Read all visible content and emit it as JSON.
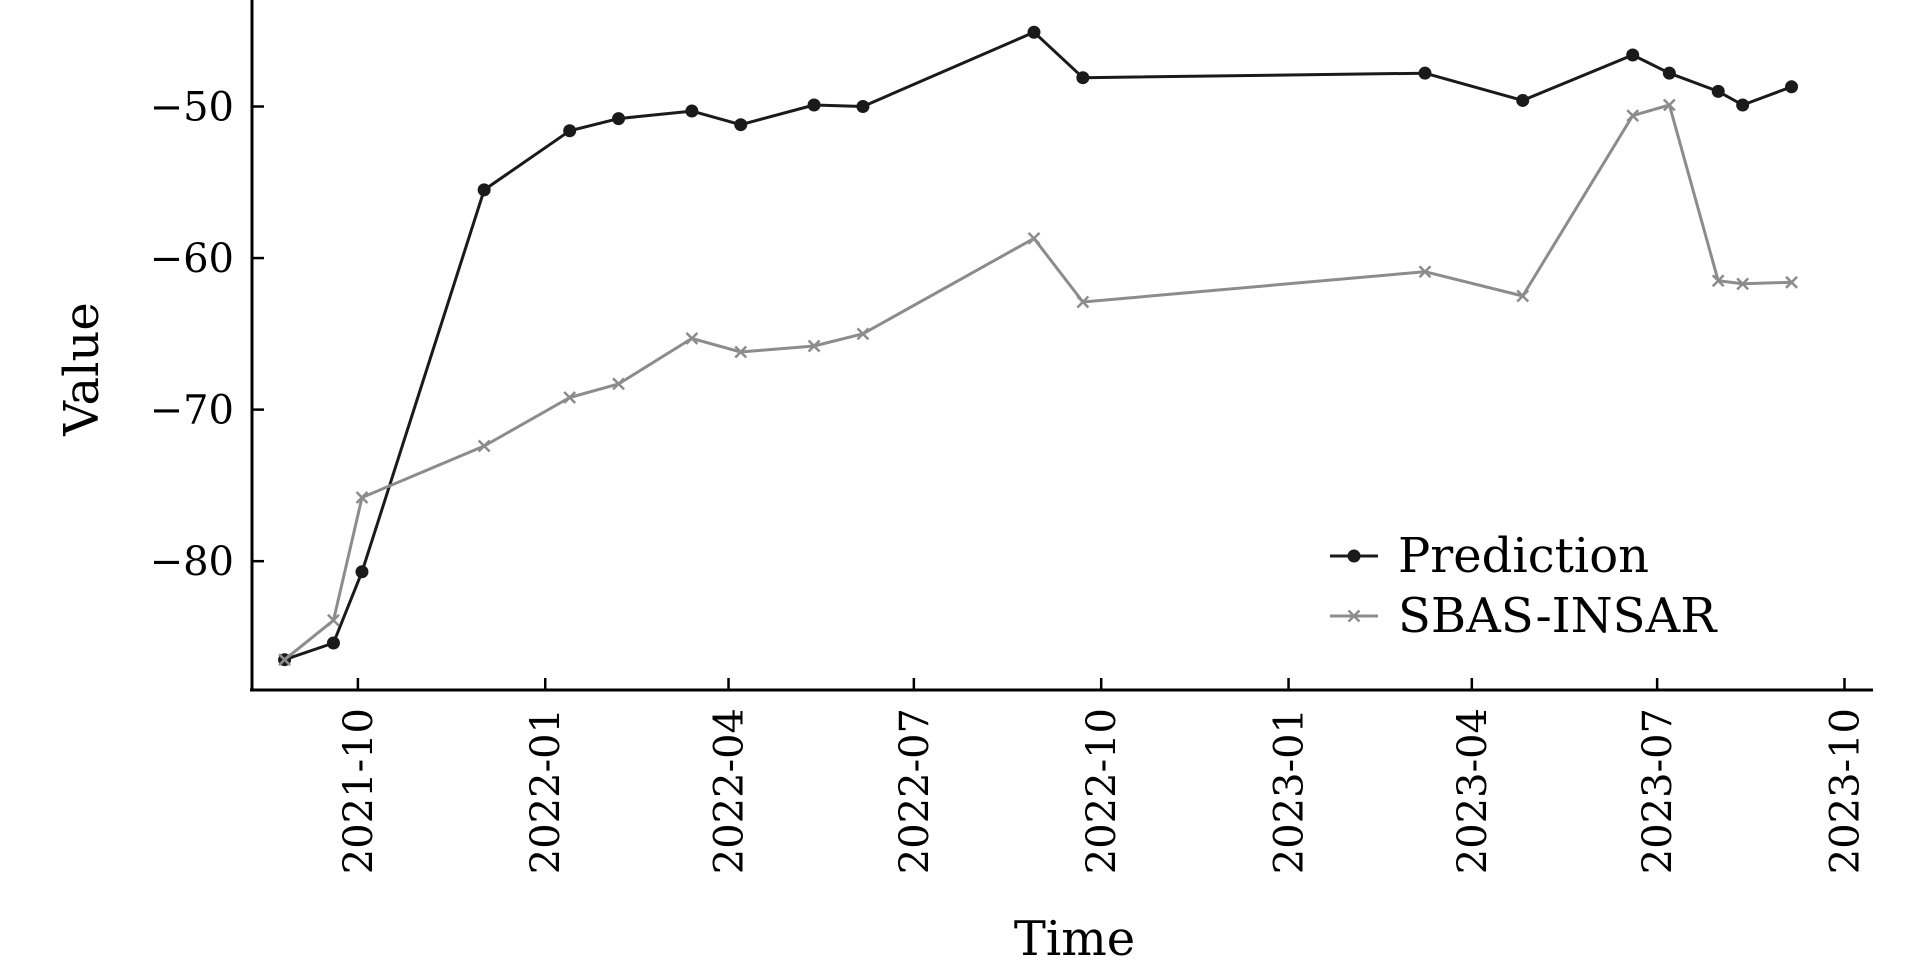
{
  "chart_data": {
    "type": "line",
    "title": "",
    "xlabel": "Time",
    "ylabel": "Value",
    "x_ticks": [
      "2021-10",
      "2022-01",
      "2022-04",
      "2022-07",
      "2022-10",
      "2023-01",
      "2023-04",
      "2023-07",
      "2023-10"
    ],
    "y_ticks": [
      -80,
      -70,
      -60,
      -50
    ],
    "xlim": [
      "2021-08-10",
      "2023-10-15"
    ],
    "ylim": [
      -88.5,
      -43.5
    ],
    "grid": false,
    "legend": "bottom-right",
    "series": [
      {
        "name": "Prediction",
        "color": "#1a1a1a",
        "marker": "dot",
        "points": [
          {
            "x": "2021-08-26",
            "y": -86.5
          },
          {
            "x": "2021-09-19",
            "y": -85.4
          },
          {
            "x": "2021-10-03",
            "y": -80.7
          },
          {
            "x": "2021-12-02",
            "y": -55.5
          },
          {
            "x": "2022-01-13",
            "y": -51.6
          },
          {
            "x": "2022-02-06",
            "y": -50.8
          },
          {
            "x": "2022-03-14",
            "y": -50.3
          },
          {
            "x": "2022-04-07",
            "y": -51.2
          },
          {
            "x": "2022-05-13",
            "y": -49.9
          },
          {
            "x": "2022-06-06",
            "y": -50.0
          },
          {
            "x": "2022-08-29",
            "y": -45.1
          },
          {
            "x": "2022-09-22",
            "y": -48.1
          },
          {
            "x": "2023-03-09",
            "y": -47.8
          },
          {
            "x": "2023-04-26",
            "y": -49.6
          },
          {
            "x": "2023-06-19",
            "y": -46.6
          },
          {
            "x": "2023-07-07",
            "y": -47.8
          },
          {
            "x": "2023-07-31",
            "y": -49.0
          },
          {
            "x": "2023-08-12",
            "y": -49.9
          },
          {
            "x": "2023-09-05",
            "y": -48.7
          }
        ]
      },
      {
        "name": "SBAS-INSAR",
        "color": "#8c8c8c",
        "marker": "x",
        "points": [
          {
            "x": "2021-08-26",
            "y": -86.5
          },
          {
            "x": "2021-09-19",
            "y": -83.9
          },
          {
            "x": "2021-10-03",
            "y": -75.8
          },
          {
            "x": "2021-12-02",
            "y": -72.4
          },
          {
            "x": "2022-01-13",
            "y": -69.2
          },
          {
            "x": "2022-02-06",
            "y": -68.3
          },
          {
            "x": "2022-03-14",
            "y": -65.3
          },
          {
            "x": "2022-04-07",
            "y": -66.2
          },
          {
            "x": "2022-05-13",
            "y": -65.8
          },
          {
            "x": "2022-06-06",
            "y": -65.0
          },
          {
            "x": "2022-08-29",
            "y": -58.7
          },
          {
            "x": "2022-09-22",
            "y": -62.9
          },
          {
            "x": "2023-03-09",
            "y": -60.9
          },
          {
            "x": "2023-04-26",
            "y": -62.5
          },
          {
            "x": "2023-06-19",
            "y": -50.6
          },
          {
            "x": "2023-07-07",
            "y": -49.9
          },
          {
            "x": "2023-07-31",
            "y": -61.5
          },
          {
            "x": "2023-08-12",
            "y": -61.7
          },
          {
            "x": "2023-09-05",
            "y": -61.6
          }
        ]
      }
    ]
  }
}
